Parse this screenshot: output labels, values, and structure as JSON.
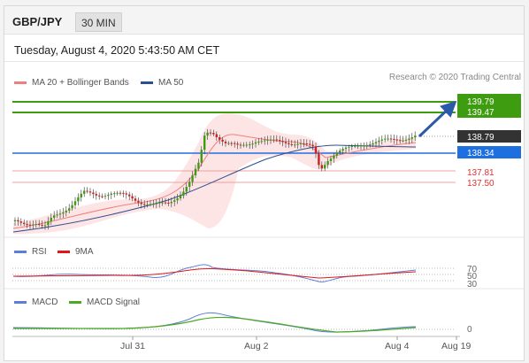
{
  "header": {
    "pair": "GBP/JPY",
    "timeframe": "30 MIN"
  },
  "timestamp": "Tuesday, August 4, 2020 5:43:50 AM CET",
  "legend_main": [
    {
      "label": "MA 20 + Bollinger Bands",
      "color": "#f08080"
    },
    {
      "label": "MA 50",
      "color": "#2c4f8f"
    }
  ],
  "source": "Research © 2020 Trading Central",
  "price_tags": [
    {
      "value": "139.79",
      "bg": "#3e9c10",
      "fg": "#fff"
    },
    {
      "value": "139.47",
      "bg": "#3e9c10",
      "fg": "#fff"
    },
    {
      "value": "138.79",
      "bg": "#333333",
      "fg": "#fff"
    },
    {
      "value": "138.34",
      "bg": "#1e6fe0",
      "fg": "#fff"
    },
    {
      "value": "137.81",
      "bg": "none",
      "fg": "#e03030"
    },
    {
      "value": "137.50",
      "bg": "none",
      "fg": "#e03030"
    }
  ],
  "legend_rsi": [
    {
      "label": "RSI",
      "color": "#5b7fd8"
    },
    {
      "label": "9MA",
      "color": "#e01818"
    }
  ],
  "rsi_levels": [
    "70",
    "50",
    "30"
  ],
  "legend_macd": [
    {
      "label": "MACD",
      "color": "#5b7fd8"
    },
    {
      "label": "MACD Signal",
      "color": "#4caa20"
    }
  ],
  "macd_level": "0",
  "x_axis": [
    "Jul 31",
    "Aug 2",
    "Aug 4",
    "Aug 19"
  ],
  "colors": {
    "bull": "#3e9c10",
    "bear": "#cc2222",
    "support": "#1e6fe0",
    "resistance": "#3e9c10",
    "lowline": "#e03030",
    "arrow": "#2a5aa8"
  }
}
